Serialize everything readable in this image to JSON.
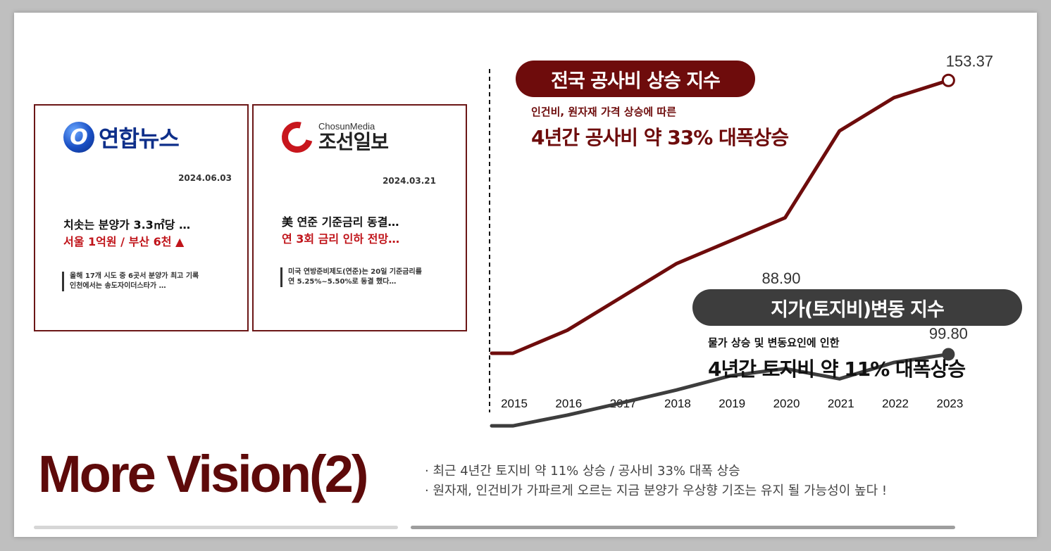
{
  "cards": [
    {
      "logo_letter": "O",
      "logo_name": "연합뉴스",
      "date": "2024.06.03",
      "headline_line1": "치솟는 분양가 3.3㎡당 …",
      "headline_line2": "서울 1억원 / 부산 6천 ▲",
      "summary_line1": "올해 17개 시도 중 6곳서 분양가 최고 기록",
      "summary_line2": "인천에서는 송도자이더스타가 …"
    },
    {
      "logo_media": "ChosunMedia",
      "logo_name": "조선일보",
      "date": "2024.03.21",
      "headline_line1": "美 연준 기준금리 동결…",
      "headline_line2": "연 3회 금리 인하 전망…",
      "summary_line1": "미국 연방준비제도(연준)는 20일 기준금리를",
      "summary_line2": "연 5.25%~5.50%로 동결 했다…"
    }
  ],
  "chart_data": {
    "type": "line",
    "categories": [
      "2015",
      "2016",
      "2017",
      "2018",
      "2019",
      "2020",
      "2021",
      "2022",
      "2023"
    ],
    "series": [
      {
        "name": "전국 공사비 상승 지수",
        "color": "#6e0c0c",
        "values": [
          100,
          104.5,
          111.0,
          117.5,
          122.0,
          126.5,
          143.5,
          150.0,
          153.37
        ],
        "end_label": "153.37"
      },
      {
        "name": "지가(토지비)변동 지수",
        "color": "#3d3d3d",
        "values": [
          85.8,
          87.9,
          90.3,
          92.8,
          95.6,
          97.0,
          95.0,
          98.2,
          99.8
        ],
        "end_label": "99.80",
        "point_label": "88.90"
      }
    ],
    "callouts": {
      "red_pill": "전국 공사비 상승 지수",
      "red_sub": "인건비, 원자재 가격 상승에 따른",
      "red_main": "4년간 공사비 약 33% 대폭상승",
      "gray_pill": "지가(토지비)변동 지수",
      "gray_sub": "물가 상승 및 변동요인에 인한",
      "gray_main": "4년간 토지비 약 11% 대폭상승"
    }
  },
  "title": "More Vision(2)",
  "bullets": [
    "· 최근 4년간 토지비 약 11% 상승 / 공사비 33% 대폭 상승",
    "· 원자재, 인건비가 가파르게 오르는 지금 분양가 우상향 기조는 유지 될 가능성이 높다 !"
  ]
}
